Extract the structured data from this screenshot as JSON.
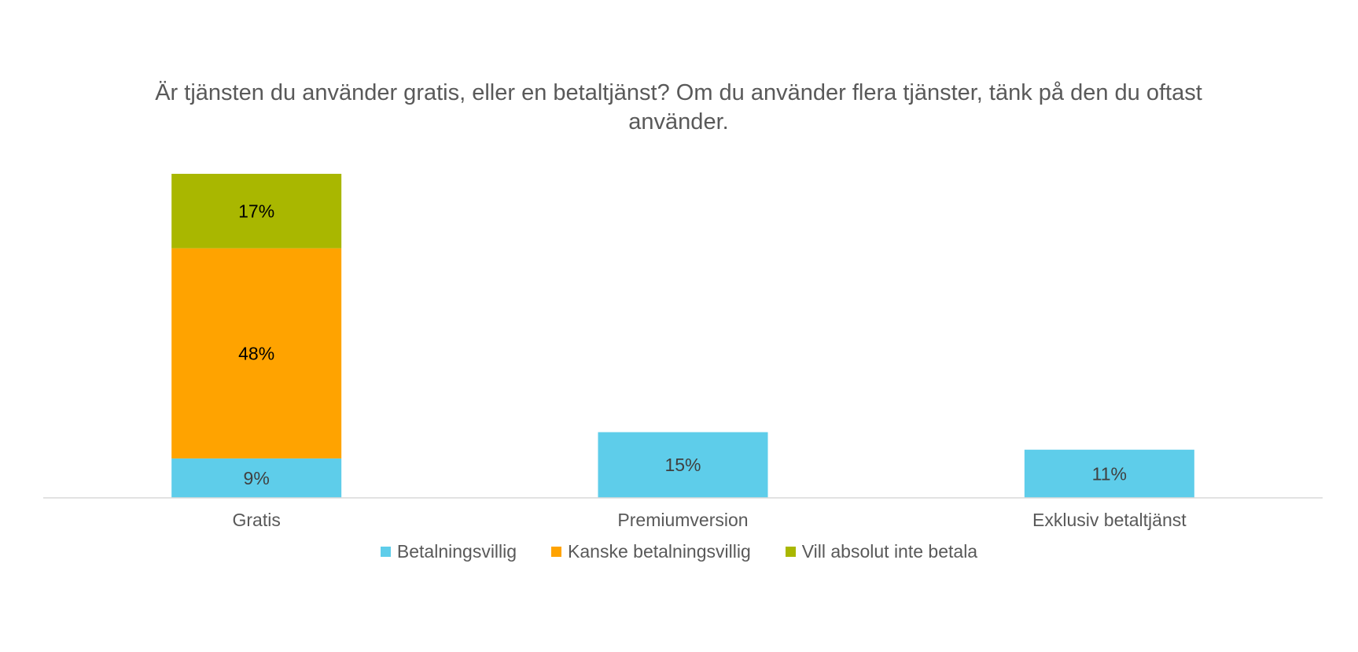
{
  "chart_data": {
    "type": "bar",
    "stacked": true,
    "title": "Är tjänsten du använder gratis, eller en betaltjänst? Om du använder flera tjänster, tänk på den du oftast använder.",
    "categories": [
      "Gratis",
      "Premiumversion",
      "Exklusiv betaltjänst"
    ],
    "series": [
      {
        "name": "Betalningsvillig",
        "color": "#5ECDEA",
        "values": [
          9,
          15,
          11
        ],
        "labels": [
          "9%",
          "15%",
          "11%"
        ]
      },
      {
        "name": "Kanske betalningsvillig",
        "color": "#FFA300",
        "values": [
          48,
          null,
          null
        ],
        "labels": [
          "48%",
          "",
          ""
        ]
      },
      {
        "name": "Vill absolut inte betala",
        "color": "#A9B700",
        "values": [
          17,
          null,
          null
        ],
        "labels": [
          "17%",
          "",
          ""
        ]
      }
    ],
    "ylim": [
      0,
      74
    ],
    "grid": false,
    "legend_position": "bottom",
    "axis_color": "#D9D9D9",
    "label_color": "#404040",
    "label_dark_color": "#000000"
  }
}
